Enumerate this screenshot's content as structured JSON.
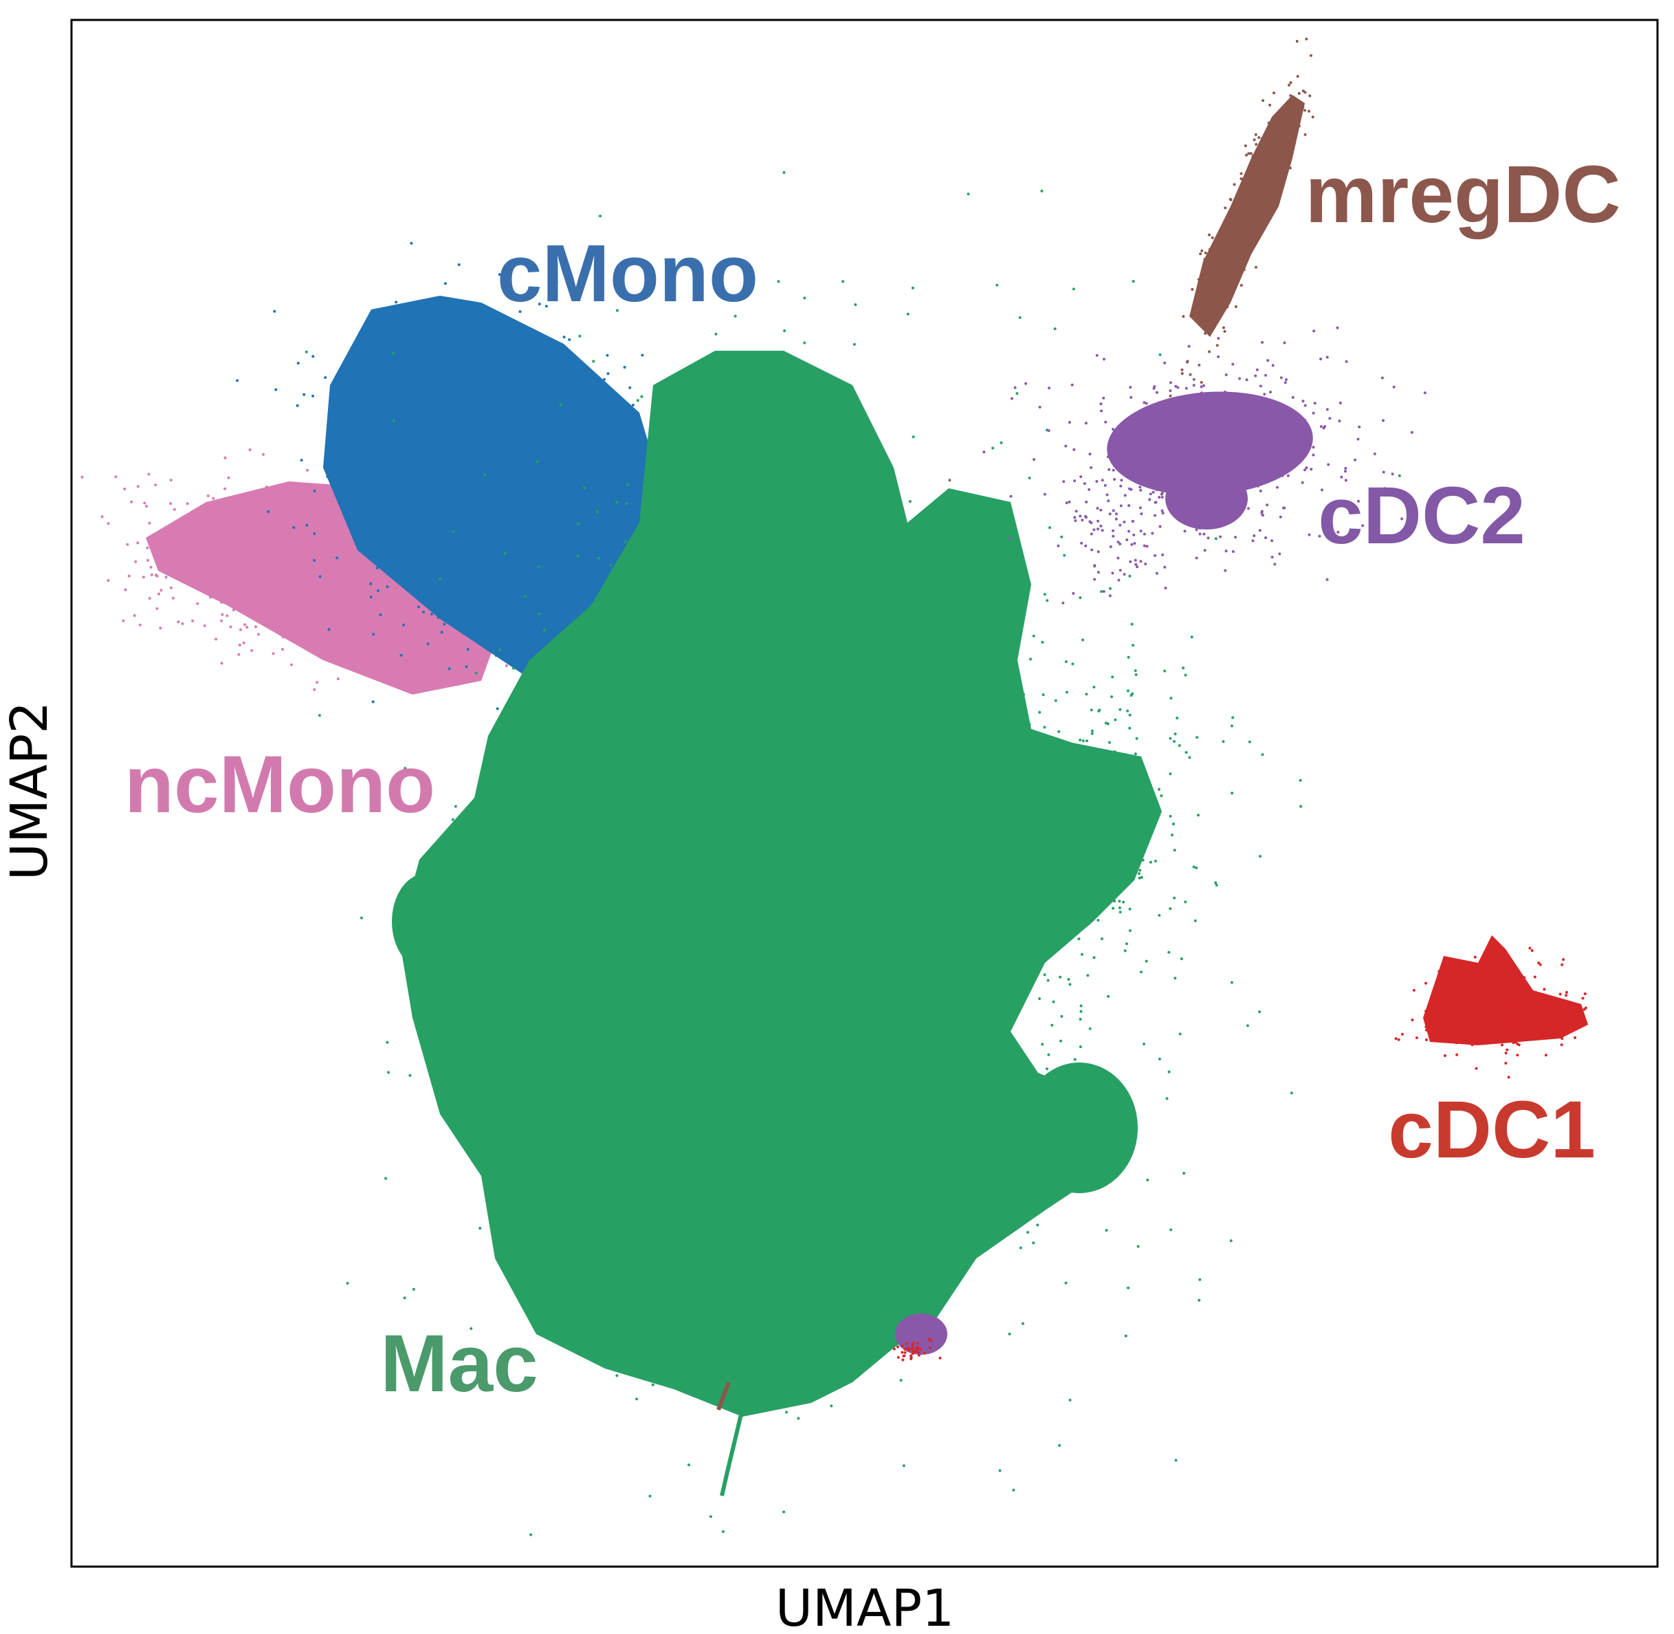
{
  "chart_data": {
    "type": "scatter",
    "xlabel": "UMAP1",
    "ylabel": "UMAP2",
    "xticks": [],
    "yticks": [],
    "grid": false,
    "legend": "none",
    "clusters": [
      {
        "name": "Mac",
        "color": "#27a064",
        "label_color": "#4a9a6c"
      },
      {
        "name": "cMono",
        "color": "#2073b4",
        "label_color": "#3a6fad"
      },
      {
        "name": "ncMono",
        "color": "#d87bb3",
        "label_color": "#d27aae"
      },
      {
        "name": "cDC2",
        "color": "#8a58a8",
        "label_color": "#8358a6"
      },
      {
        "name": "mregDC",
        "color": "#8c564b",
        "label_color": "#8c574d"
      },
      {
        "name": "cDC1",
        "color": "#d62728",
        "label_color": "#c93a2e"
      }
    ]
  }
}
